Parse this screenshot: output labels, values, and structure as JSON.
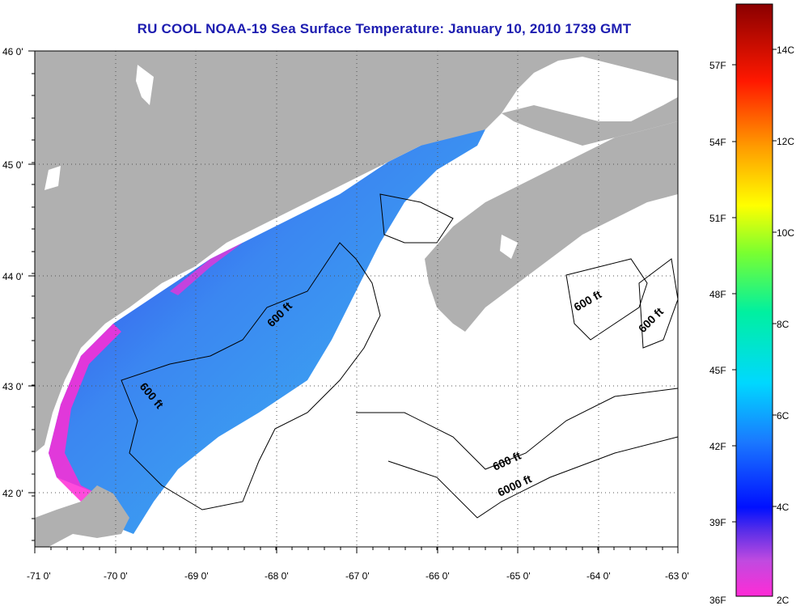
{
  "title": "RU COOL  NOAA-19  Sea Surface Temperature:  January 10, 2010 1739 GMT",
  "map": {
    "lon_ticks": [
      "-71 0'",
      "-70 0'",
      "-69 0'",
      "-68 0'",
      "-67 0'",
      "-66 0'",
      "-65 0'",
      "-64 0'",
      "-63 0'"
    ],
    "lat_ticks": [
      "46 0'",
      "45 0'",
      "44 0'",
      "43 0'",
      "42 0'"
    ],
    "contour_labels": [
      "600 ft",
      "600 ft",
      "600 ft",
      "600 ft",
      "600 ft",
      "6000 ft"
    ],
    "colors": {
      "land": "#b0b0b0",
      "ocean_nodata": "#ffffff",
      "grid": "#555555"
    }
  },
  "colorbar": {
    "fahrenheit_labels": [
      "57F",
      "54F",
      "51F",
      "48F",
      "45F",
      "42F",
      "39F",
      "36F"
    ],
    "celsius_labels": [
      "14C",
      "12C",
      "10C",
      "8C",
      "6C",
      "4C",
      "2C"
    ]
  }
}
